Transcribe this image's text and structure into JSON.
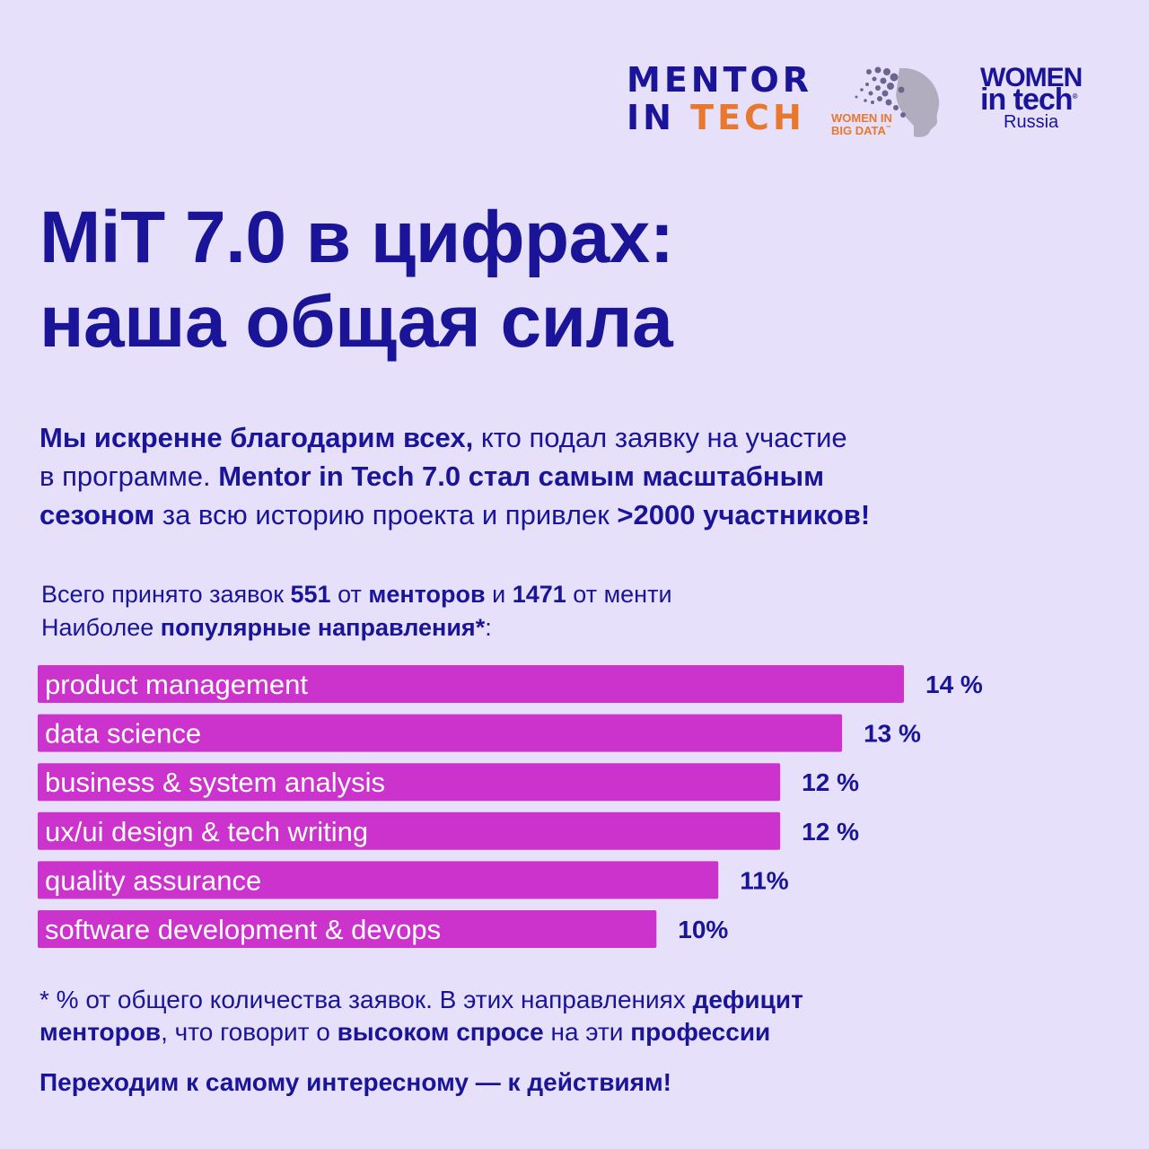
{
  "logos": {
    "mentor_in_tech": {
      "line1": "MENTOR",
      "line2_prefix": "IN ",
      "line2_accent": "TECH"
    },
    "women_in_big_data": {
      "line1": "WOMEN IN",
      "line2": "BIG DATA",
      "tm": "™"
    },
    "women_in_tech": {
      "line1": "WOMEN",
      "line2": "in tech",
      "line3": "Russia",
      "reg": "®"
    }
  },
  "title": {
    "line1": "MiT 7.0 в цифрах:",
    "line2": "наша общая сила"
  },
  "intro": {
    "p1_bold": "Мы искренне благодарим всех,",
    "p1_rest": " кто подал заявку на участие",
    "p2_start": "в программе. ",
    "p2_bold": "Mentor in Tech 7.0 стал самым масштабным",
    "p3_bold": "сезоном",
    "p3_rest": " за всю историю проекта и привлек ",
    "p3_bold2": ">2000 участников!"
  },
  "stats": {
    "s1": "Всего принято заявок ",
    "n_mentors": "551",
    "s2": " от ",
    "mentors": "менторов",
    "s3": " и ",
    "n_mentees": "1471",
    "s4": " от менти",
    "s5": "Наиболее ",
    "popular": "популярные направления*",
    "s6": ":"
  },
  "chart_data": {
    "type": "bar",
    "orientation": "horizontal",
    "categories": [
      "product management",
      "data science",
      "business & system analysis",
      "ux/ui design & tech writing",
      "quality assurance",
      "software development & devops"
    ],
    "values": [
      14,
      13,
      12,
      12,
      11,
      10
    ],
    "value_labels": [
      "14 %",
      "13 %",
      "12 %",
      "12 %",
      "11%",
      "10%"
    ],
    "unit": "%",
    "bar_color": "#cc33cc",
    "label_color": "#ffffff",
    "value_color": "#1a1499"
  },
  "note": {
    "n1": "* % от общего количества заявок. В  этих направлениях ",
    "n1_bold": "дефицит",
    "n2_bold": "менторов",
    "n2": ", что говорит о ",
    "n2_bold2": "высоком спросе",
    "n3": " на эти ",
    "n3_bold": "профессии"
  },
  "cta": "Переходим к самому интересному — к действиям!",
  "colors": {
    "background": "#e6e0fb",
    "primary": "#1a1499",
    "accent_orange": "#e8782e",
    "bar": "#cc33cc"
  }
}
